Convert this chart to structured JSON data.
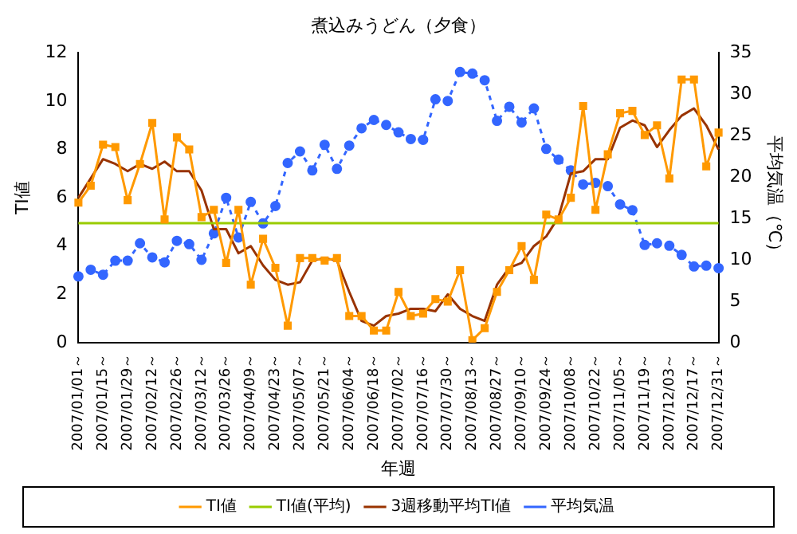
{
  "chart_data": {
    "type": "line",
    "title": "煮込みうどん（夕食）",
    "xlabel": "年週",
    "ylabel": "TI値",
    "y2label": "平均気温（℃）",
    "categories": [
      "2007/01/01～",
      null,
      "2007/01/15～",
      null,
      "2007/01/29～",
      null,
      "2007/02/12～",
      null,
      "2007/02/26～",
      null,
      "2007/03/12～",
      null,
      "2007/03/26～",
      null,
      "2007/04/09～",
      null,
      "2007/04/23～",
      null,
      "2007/05/07～",
      null,
      "2007/05/21～",
      null,
      "2007/06/04～",
      null,
      "2007/06/18～",
      null,
      "2007/07/02～",
      null,
      "2007/07/16～",
      null,
      "2007/07/30～",
      null,
      "2007/08/13～",
      null,
      "2007/08/27～",
      null,
      "2007/09/10～",
      null,
      "2007/09/24～",
      null,
      "2007/10/08～",
      null,
      "2007/10/22～",
      null,
      "2007/11/05～",
      null,
      "2007/11/19～",
      null,
      "2007/12/03～",
      null,
      "2007/12/17～",
      null,
      "2007/12/31～"
    ],
    "series": [
      {
        "name": "TI値",
        "color": "#ff9900",
        "marker": "square",
        "line_style": "solid",
        "values": [
          5.8,
          6.5,
          8.2,
          8.1,
          5.9,
          7.4,
          9.1,
          5.1,
          8.5,
          8.0,
          5.2,
          5.5,
          3.3,
          5.5,
          2.4,
          4.3,
          3.1,
          0.7,
          3.5,
          3.5,
          3.4,
          3.5,
          1.1,
          1.1,
          0.5,
          0.5,
          2.1,
          1.1,
          1.2,
          1.8,
          1.7,
          3.0,
          0.1,
          0.6,
          2.1,
          3.0,
          4.0,
          2.6,
          5.3,
          5.1,
          6.0,
          9.8,
          5.5,
          7.8,
          9.5,
          9.6,
          8.6,
          9.0,
          6.8,
          10.9,
          10.9,
          7.3,
          8.7
        ]
      },
      {
        "name": "TI値(平均)",
        "color": "#99cc00",
        "marker": "none",
        "line_style": "solid",
        "values": [
          4.95,
          4.95,
          4.95,
          4.95,
          4.95,
          4.95,
          4.95,
          4.95,
          4.95,
          4.95,
          4.95,
          4.95,
          4.95,
          4.95,
          4.95,
          4.95,
          4.95,
          4.95,
          4.95,
          4.95,
          4.95,
          4.95,
          4.95,
          4.95,
          4.95,
          4.95,
          4.95,
          4.95,
          4.95,
          4.95,
          4.95,
          4.95,
          4.95,
          4.95,
          4.95,
          4.95,
          4.95,
          4.95,
          4.95,
          4.95,
          4.95,
          4.95,
          4.95,
          4.95,
          4.95,
          4.95,
          4.95,
          4.95,
          4.95,
          4.95,
          4.95,
          4.95,
          4.95
        ]
      },
      {
        "name": "3週移動平均TI値",
        "color": "#993300",
        "marker": "none",
        "line_style": "solid",
        "values": [
          6.0,
          6.8,
          7.6,
          7.4,
          7.1,
          7.4,
          7.2,
          7.5,
          7.1,
          7.1,
          6.3,
          4.7,
          4.7,
          3.7,
          4.0,
          3.2,
          2.6,
          2.4,
          2.5,
          3.4,
          3.5,
          3.4,
          2.1,
          0.9,
          0.7,
          1.1,
          1.2,
          1.4,
          1.4,
          1.3,
          2.0,
          1.4,
          1.1,
          0.9,
          2.4,
          3.1,
          3.3,
          4.0,
          4.4,
          5.2,
          7.0,
          7.1,
          7.6,
          7.6,
          8.9,
          9.2,
          9.0,
          8.1,
          8.8,
          9.4,
          9.7,
          9.0,
          8.0
        ]
      },
      {
        "name": "平均気温",
        "axis": "y2",
        "color": "#3366ff",
        "marker": "circle",
        "line_style": "dashed",
        "values": [
          8.0,
          8.8,
          8.2,
          9.9,
          9.9,
          12.0,
          10.3,
          9.7,
          12.3,
          11.9,
          10.0,
          13.2,
          17.5,
          12.7,
          17.0,
          14.4,
          16.5,
          21.7,
          23.1,
          20.8,
          23.9,
          21.0,
          23.8,
          25.9,
          26.9,
          26.3,
          25.4,
          24.6,
          24.5,
          29.4,
          29.2,
          32.7,
          32.5,
          31.7,
          26.8,
          28.5,
          26.6,
          28.3,
          23.4,
          22.1,
          20.8,
          19.1,
          19.3,
          18.9,
          16.7,
          16.0,
          11.8,
          12.0,
          11.7,
          10.6,
          9.2,
          9.3,
          9.0
        ]
      }
    ],
    "ylim": [
      0,
      12
    ],
    "yticks": [
      0,
      2,
      4,
      6,
      8,
      10,
      12
    ],
    "y2lim": [
      0,
      35
    ],
    "y2ticks": [
      0,
      5,
      10,
      15,
      20,
      25,
      30,
      35
    ],
    "legend": "bottom"
  }
}
